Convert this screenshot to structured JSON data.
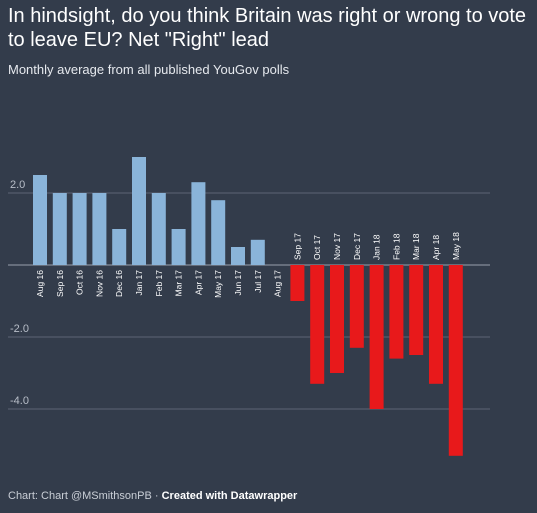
{
  "chart_data": {
    "type": "bar",
    "title": "In hindsight, do you think Britain was right or wrong to vote to leave EU? Net \"Right\" lead",
    "subtitle": "Monthly average from all published YouGov polls",
    "categories": [
      "Aug 16",
      "Sep 16",
      "Oct 16",
      "Nov 16",
      "Dec 16",
      "Jan 17",
      "Feb 17",
      "Mar 17",
      "Apr 17",
      "May 17",
      "Jun 17",
      "Jul 17",
      "Aug 17",
      "Sep 17",
      "Oct 17",
      "Nov 17",
      "Dec 17",
      "Jan 18",
      "Feb 18",
      "Mar 18",
      "Apr 18",
      "May 18"
    ],
    "values": [
      2.5,
      2.0,
      2.0,
      2.0,
      1.0,
      3.0,
      2.0,
      1.0,
      2.3,
      1.8,
      0.5,
      0.7,
      0.0,
      -1.0,
      -3.3,
      -3.0,
      -2.3,
      -4.0,
      -2.6,
      -2.5,
      -3.3,
      -5.3
    ],
    "ylim": [
      -5.5,
      3.5
    ],
    "yticks": [
      2.0,
      -2.0,
      -4.0
    ],
    "ytick_labels": [
      "2.0",
      "-2.0",
      "-4.0"
    ],
    "xlabel": "",
    "ylabel": "",
    "grid": true,
    "colors": {
      "positive": "#8ab4d9",
      "negative": "#e8191b",
      "gridline": "#5d6575",
      "zeroline": "#9aa1ad",
      "background": "#333c4b"
    }
  },
  "footer": {
    "source": "Chart: Chart @MSmithsonPB",
    "separator": " · ",
    "credit": "Created with Datawrapper"
  }
}
